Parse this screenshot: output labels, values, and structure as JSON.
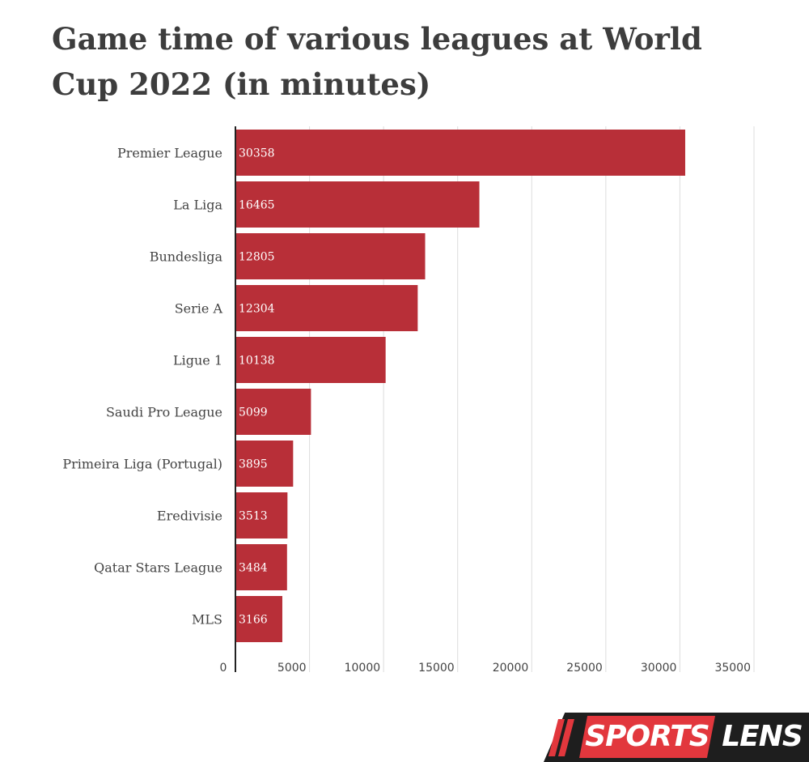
{
  "chart_data": {
    "type": "bar",
    "orientation": "horizontal",
    "title": "Game time of various leagues at World Cup 2022 (in minutes)",
    "categories": [
      "Premier League",
      "La Liga",
      "Bundesliga",
      "Serie A",
      "Ligue 1",
      "Saudi Pro League",
      "Primeira Liga (Portugal)",
      "Eredivisie",
      "Qatar Stars League",
      "MLS"
    ],
    "values": [
      30358,
      16465,
      12805,
      12304,
      10138,
      5099,
      3895,
      3513,
      3484,
      3166
    ],
    "x_ticks": [
      "0",
      "5000",
      "10000",
      "15000",
      "20000",
      "25000",
      "30000",
      "35000"
    ],
    "xlim": [
      0,
      35000
    ],
    "grid": true,
    "bar_color": "#b82f38"
  },
  "logo": {
    "part1": "SPORTS",
    "part2": "LENS",
    "accent": "#e2373d"
  }
}
